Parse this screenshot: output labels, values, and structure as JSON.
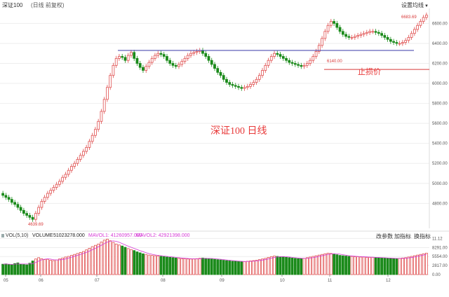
{
  "header": {
    "title": "深证100",
    "mode": "(日线 前复权)"
  },
  "settings": {
    "label": "设置均线"
  },
  "volume_header": {
    "vol_label": "VOL(5,10)",
    "vol_value": "",
    "volume_label": "VOLUME",
    "volume_value": "51023278.000",
    "ma1": "MAVOL1: 41260957.000",
    "ma2": "MAVOL2: 42921398.000"
  },
  "volume_buttons": {
    "params": "改参数",
    "add": "加指标",
    "switch": "换指标"
  },
  "annotations": {
    "main_text": "深证100   日线",
    "stop_loss": "止损价",
    "stop_value": "6140.00",
    "high_label": "6683.69",
    "low_label": "4639.69"
  },
  "colors": {
    "up": "#e05050",
    "down": "#1a8a1a",
    "ma": "#d63ad6",
    "resistance": "#3a3aaa",
    "stop": "#d83a3a",
    "text_red": "#e83a3a"
  },
  "chart_data": {
    "type": "candlestick",
    "price_ticks": [
      "6600.00",
      "6400.00",
      "6200.00",
      "6000.00",
      "5800.00",
      "5600.00",
      "5400.00",
      "5200.00",
      "5000.00",
      "4800.00"
    ],
    "x_ticks": [
      "05",
      "06",
      "07",
      "08",
      "09",
      "10",
      "11",
      "12"
    ],
    "volume_ticks": [
      "11.12",
      "8291.00",
      "5554.00",
      "2817.00",
      "0.00"
    ],
    "price_range": [
      4550,
      6750
    ],
    "resistance_level": 6330,
    "stop_loss_level": 6140,
    "closes": [
      4880,
      4860,
      4840,
      4810,
      4790,
      4760,
      4730,
      4700,
      4680,
      4660,
      4640,
      4700,
      4760,
      4820,
      4860,
      4900,
      4930,
      4960,
      4990,
      5020,
      5060,
      5090,
      5130,
      5170,
      5200,
      5240,
      5280,
      5320,
      5360,
      5420,
      5480,
      5540,
      5620,
      5720,
      5840,
      5960,
      6080,
      6180,
      6250,
      6270,
      6260,
      6230,
      6280,
      6310,
      6250,
      6200,
      6160,
      6130,
      6170,
      6210,
      6250,
      6280,
      6300,
      6290,
      6270,
      6230,
      6200,
      6180,
      6170,
      6190,
      6220,
      6250,
      6280,
      6300,
      6310,
      6320,
      6330,
      6300,
      6270,
      6230,
      6190,
      6150,
      6110,
      6080,
      6040,
      6010,
      5990,
      5980,
      5970,
      5960,
      5950,
      5960,
      5970,
      5990,
      6010,
      6040,
      6080,
      6130,
      6180,
      6230,
      6270,
      6300,
      6290,
      6270,
      6250,
      6230,
      6210,
      6200,
      6190,
      6180,
      6170,
      6180,
      6200,
      6230,
      6270,
      6320,
      6380,
      6450,
      6520,
      6580,
      6620,
      6600,
      6560,
      6520,
      6490,
      6470,
      6460,
      6460,
      6470,
      6480,
      6490,
      6500,
      6510,
      6520,
      6520,
      6510,
      6500,
      6480,
      6460,
      6440,
      6420,
      6410,
      6400,
      6400,
      6410,
      6430,
      6460,
      6500,
      6540,
      6580,
      6620,
      6660,
      6683
    ],
    "volumes": [
      3200,
      3300,
      3100,
      3000,
      3400,
      3600,
      3200,
      3100,
      3000,
      3500,
      4200,
      4800,
      5200,
      4900,
      4600,
      4700,
      4400,
      4300,
      4500,
      4800,
      5100,
      5400,
      5600,
      5900,
      6200,
      6500,
      6800,
      7100,
      7600,
      8100,
      8600,
      9000,
      9400,
      10000,
      10600,
      10900,
      10400,
      9900,
      9400,
      9100,
      8800,
      8400,
      8000,
      7700,
      7400,
      7000,
      6700,
      6400,
      6200,
      6000,
      5900,
      5800,
      5700,
      5600,
      5500,
      5400,
      5300,
      5200,
      5100,
      5000,
      4900,
      4900,
      4800,
      4800,
      4800,
      4900,
      5000,
      5100,
      5000,
      4900,
      4800,
      4700,
      4600,
      4500,
      4400,
      4300,
      4200,
      4100,
      4100,
      4000,
      4000,
      4000,
      4100,
      4200,
      4300,
      4400,
      4600,
      4800,
      5000,
      5300,
      5500,
      5700,
      5600,
      5500,
      5400,
      5300,
      5200,
      5100,
      5000,
      4900,
      4900,
      5000,
      5200,
      5400,
      5600,
      5800,
      6000,
      6200,
      6400,
      6600,
      6500,
      6300,
      6100,
      5900,
      5800,
      5700,
      5600,
      5600,
      5500,
      5500,
      5400,
      5400,
      5300,
      5300,
      5300,
      5200,
      5200,
      5100,
      5100,
      5000,
      5000,
      4900,
      4900,
      5000,
      5100,
      5200,
      5400,
      5600,
      5800,
      6000,
      6200,
      6400,
      6600
    ]
  }
}
